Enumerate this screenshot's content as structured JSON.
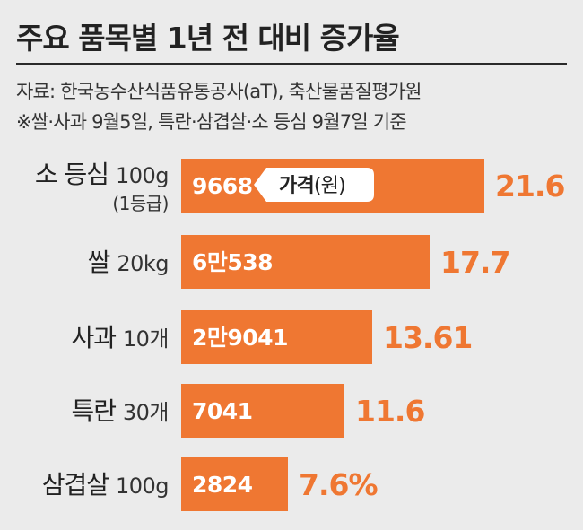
{
  "title": "주요 품목별 1년 전 대비 증가율",
  "source_line": "자료: 한국농수산식품유통공사(aT), 축산물품질평가원",
  "note_line": "※쌀·사과 9월5일, 특란·삼겹살·소 등심 9월7일 기준",
  "price_tag": {
    "bold": "가격",
    "rest": "(원)"
  },
  "colors": {
    "bar": "#ef7732",
    "pct": "#ef7732",
    "background": "#ebebeb"
  },
  "chart_data": {
    "type": "bar",
    "orientation": "horizontal",
    "value_unit": "%",
    "items": [
      {
        "name": "소 등심",
        "unit": "100g",
        "sub": "(1등급)",
        "price": "9668",
        "value": 21.6,
        "value_label": "21.6"
      },
      {
        "name": "쌀",
        "unit": "20kg",
        "sub": "",
        "price": "6만538",
        "value": 17.7,
        "value_label": "17.7"
      },
      {
        "name": "사과",
        "unit": "10개",
        "sub": "",
        "price": "2만9041",
        "value": 13.61,
        "value_label": "13.61"
      },
      {
        "name": "특란",
        "unit": "30개",
        "sub": "",
        "price": "7041",
        "value": 11.6,
        "value_label": "11.6"
      },
      {
        "name": "삼겹살",
        "unit": "100g",
        "sub": "",
        "price": "2824",
        "value": 7.6,
        "value_label": "7.6%"
      }
    ]
  }
}
